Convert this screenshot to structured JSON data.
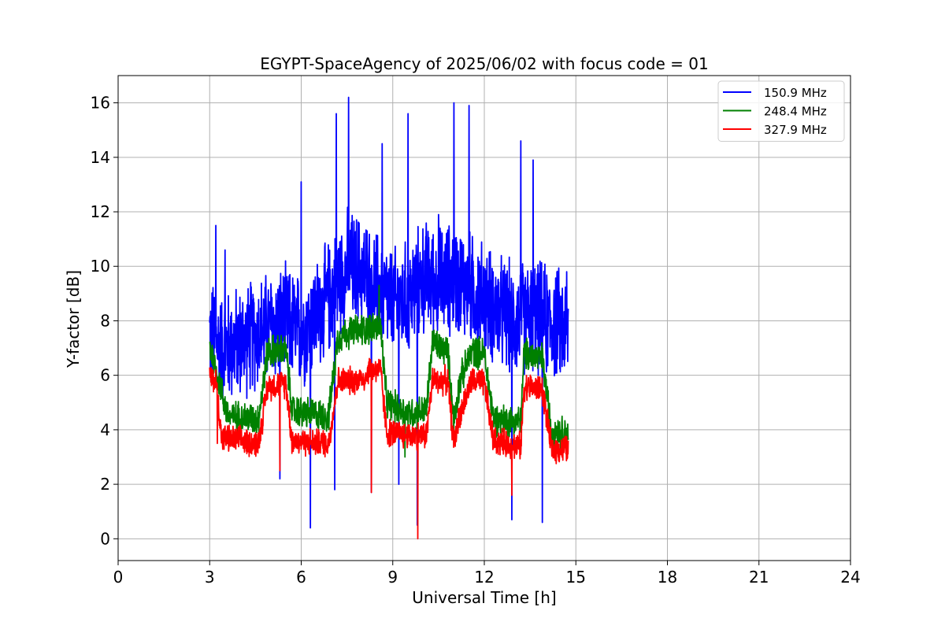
{
  "chart_data": {
    "type": "line",
    "title": "EGYPT-SpaceAgency of 2025/06/02 with focus code = 01",
    "xlabel": "Universal Time [h]",
    "ylabel": "Y-factor [dB]",
    "xlim": [
      0,
      24
    ],
    "ylim": [
      -0.8,
      17
    ],
    "xticks": [
      0,
      3,
      6,
      9,
      12,
      15,
      18,
      21,
      24
    ],
    "yticks": [
      0,
      2,
      4,
      6,
      8,
      10,
      12,
      14,
      16
    ],
    "grid": true,
    "legend_position": "top-right",
    "series": [
      {
        "name": "150.9 MHz",
        "color": "#0000ff",
        "profile": [
          [
            3.0,
            7.5
          ],
          [
            3.4,
            7.0
          ],
          [
            4.0,
            7.2
          ],
          [
            4.5,
            7.5
          ],
          [
            5.0,
            7.8
          ],
          [
            5.5,
            7.9
          ],
          [
            6.0,
            7.6
          ],
          [
            6.5,
            8.2
          ],
          [
            7.0,
            9.0
          ],
          [
            7.5,
            10.0
          ],
          [
            8.0,
            9.8
          ],
          [
            8.5,
            9.2
          ],
          [
            9.0,
            8.6
          ],
          [
            9.5,
            8.8
          ],
          [
            10.0,
            9.6
          ],
          [
            10.5,
            9.4
          ],
          [
            11.0,
            9.6
          ],
          [
            11.5,
            9.2
          ],
          [
            12.0,
            8.8
          ],
          [
            12.5,
            8.3
          ],
          [
            13.0,
            8.0
          ],
          [
            13.5,
            8.2
          ],
          [
            14.0,
            8.0
          ],
          [
            14.5,
            7.8
          ],
          [
            14.75,
            7.6
          ]
        ],
        "spread": 2.4,
        "spikes": [
          [
            3.2,
            11.5
          ],
          [
            3.5,
            10.6
          ],
          [
            5.3,
            2.2
          ],
          [
            6.0,
            13.1
          ],
          [
            6.3,
            0.4
          ],
          [
            7.15,
            15.6
          ],
          [
            7.1,
            1.8
          ],
          [
            7.55,
            16.2
          ],
          [
            8.3,
            1.7
          ],
          [
            8.65,
            14.5
          ],
          [
            9.2,
            2.0
          ],
          [
            9.5,
            15.6
          ],
          [
            9.8,
            0.5
          ],
          [
            10.5,
            11.9
          ],
          [
            11.0,
            16.0
          ],
          [
            11.5,
            15.9
          ],
          [
            12.9,
            0.7
          ],
          [
            13.2,
            14.6
          ],
          [
            13.6,
            13.9
          ],
          [
            13.9,
            0.6
          ],
          [
            14.7,
            9.8
          ]
        ]
      },
      {
        "name": "248.4 MHz",
        "color": "#008000",
        "profile": [
          [
            3.0,
            7.1
          ],
          [
            3.3,
            5.8
          ],
          [
            3.6,
            4.5
          ],
          [
            4.6,
            4.4
          ],
          [
            4.9,
            6.9
          ],
          [
            5.5,
            6.9
          ],
          [
            5.7,
            4.7
          ],
          [
            6.9,
            4.5
          ],
          [
            7.2,
            7.4
          ],
          [
            7.6,
            7.6
          ],
          [
            8.1,
            7.7
          ],
          [
            8.6,
            7.8
          ],
          [
            8.8,
            5.0
          ],
          [
            9.5,
            4.6
          ],
          [
            10.1,
            4.7
          ],
          [
            10.3,
            7.2
          ],
          [
            10.8,
            6.9
          ],
          [
            11.0,
            4.3
          ],
          [
            11.2,
            5.8
          ],
          [
            11.6,
            6.9
          ],
          [
            12.0,
            6.8
          ],
          [
            12.3,
            4.4
          ],
          [
            13.2,
            4.3
          ],
          [
            13.3,
            6.8
          ],
          [
            13.9,
            6.6
          ],
          [
            14.2,
            4.0
          ],
          [
            14.75,
            3.9
          ]
        ],
        "spread": 0.7,
        "spikes": [
          [
            8.55,
            9.3
          ],
          [
            9.4,
            3.0
          ]
        ]
      },
      {
        "name": "327.9 MHz",
        "color": "#ff0000",
        "profile": [
          [
            3.0,
            5.9
          ],
          [
            3.2,
            5.8
          ],
          [
            3.4,
            3.7
          ],
          [
            4.6,
            3.5
          ],
          [
            4.9,
            5.6
          ],
          [
            5.5,
            5.7
          ],
          [
            5.7,
            3.6
          ],
          [
            6.9,
            3.5
          ],
          [
            7.2,
            5.8
          ],
          [
            7.6,
            5.8
          ],
          [
            8.1,
            5.9
          ],
          [
            8.2,
            6.2
          ],
          [
            8.6,
            6.2
          ],
          [
            8.8,
            3.9
          ],
          [
            9.5,
            3.8
          ],
          [
            10.1,
            3.8
          ],
          [
            10.3,
            5.8
          ],
          [
            10.8,
            5.8
          ],
          [
            11.0,
            3.5
          ],
          [
            11.2,
            4.6
          ],
          [
            11.6,
            5.8
          ],
          [
            12.0,
            5.7
          ],
          [
            12.3,
            3.6
          ],
          [
            13.2,
            3.4
          ],
          [
            13.3,
            5.6
          ],
          [
            13.9,
            5.5
          ],
          [
            14.2,
            3.3
          ],
          [
            14.75,
            3.3
          ]
        ],
        "spread": 0.6,
        "spikes": [
          [
            9.82,
            0.0
          ],
          [
            8.3,
            1.7
          ],
          [
            5.3,
            2.5
          ],
          [
            12.9,
            1.6
          ],
          [
            3.25,
            3.5
          ]
        ]
      }
    ]
  }
}
